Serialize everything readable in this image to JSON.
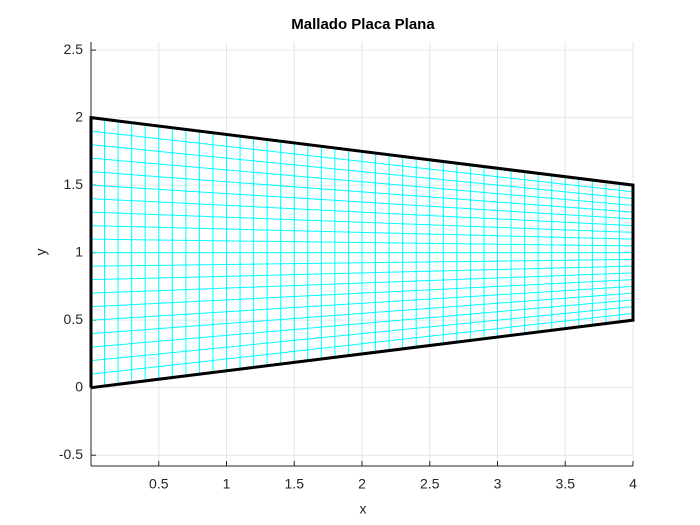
{
  "chart_data": {
    "type": "mesh",
    "title": "Mallado Placa Plana",
    "xlabel": "x",
    "ylabel": "y",
    "boundary": {
      "x": [
        0,
        4,
        4,
        0,
        0
      ],
      "y": [
        0,
        0.5,
        1.5,
        2,
        0
      ],
      "color": "#000000"
    },
    "mesh": {
      "color": "#00ffff",
      "x_divisions": 40,
      "y_divisions": 20
    },
    "xlim": [
      0,
      4
    ],
    "ylim": [
      -0.58,
      2.56
    ],
    "xticks": [
      0.5,
      1,
      1.5,
      2,
      2.5,
      3,
      3.5,
      4
    ],
    "yticks": [
      -0.5,
      0,
      0.5,
      1,
      1.5,
      2,
      2.5
    ],
    "grid": true
  }
}
